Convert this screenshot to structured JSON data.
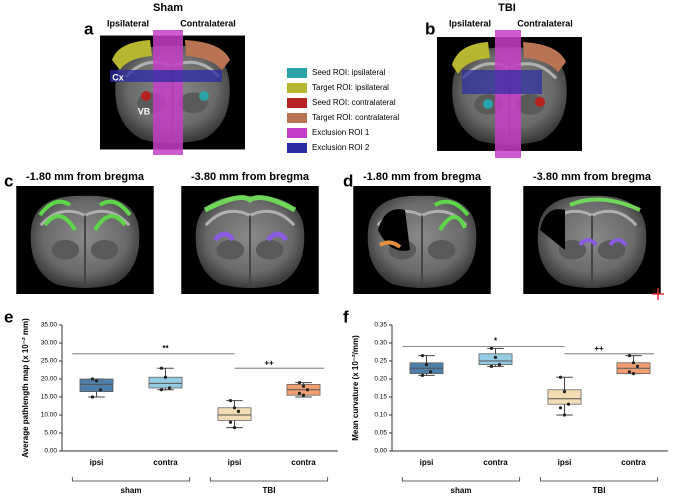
{
  "figure": {
    "panel_letters": [
      "a",
      "b",
      "c",
      "d",
      "e",
      "f"
    ],
    "panel_a": {
      "title": "Sham",
      "left": "Ipsilateral",
      "right": "Contralateral",
      "cx": "Cx",
      "vb": "VB"
    },
    "panel_b": {
      "title": "TBI",
      "left": "Ipsilateral",
      "right": "Contralateral"
    },
    "legend": [
      {
        "label": "Seed ROI: ipsilateral",
        "color": "#2aa3a8"
      },
      {
        "label": "Target ROI: ipsilateral",
        "color": "#b8b530"
      },
      {
        "label": "Seed ROI: contralateral",
        "color": "#b42222"
      },
      {
        "label": "Target ROI: contralateral",
        "color": "#b87452"
      },
      {
        "label": "Exclusion ROI 1",
        "color": "#c23ec6"
      },
      {
        "label": "Exclusion ROI 2",
        "color": "#2b2ba3"
      }
    ],
    "panel_c": {
      "left": "-1.80 mm from bregma",
      "right": "-3.80 mm from bregma"
    },
    "panel_d": {
      "left": "-1.80 mm from bregma",
      "right": "-3.80 mm from bregma"
    }
  },
  "chart_data": [
    {
      "type": "box",
      "y_label": "Average pathlength map (x 10⁻² mm)",
      "categories": [
        "ipsi",
        "contra",
        "ipsi",
        "contra"
      ],
      "group_labels": [
        "sham",
        "TBI"
      ],
      "ylim": [
        0,
        35
      ],
      "yticks": [
        {
          "value": 0,
          "label": "0.00"
        },
        {
          "value": 5,
          "label": "5.00"
        },
        {
          "value": 10,
          "label": "10.00"
        },
        {
          "value": 15,
          "label": "15.00"
        },
        {
          "value": 20,
          "label": "20.00"
        },
        {
          "value": 25,
          "label": "25.00"
        },
        {
          "value": 30,
          "label": "30.00"
        },
        {
          "value": 35,
          "label": "35.00"
        }
      ],
      "boxes": [
        {
          "color": "#4f7fa8",
          "min": 15,
          "q1": 16.5,
          "median": 18.5,
          "q3": 20,
          "max": 20,
          "points": [
            20,
            19.5,
            17,
            15
          ]
        },
        {
          "color": "#95cbe3",
          "min": 17,
          "q1": 17.5,
          "median": 18.8,
          "q3": 20.5,
          "max": 23,
          "points": [
            23,
            20.5,
            17.5,
            17
          ]
        },
        {
          "color": "#f3dcb4",
          "min": 6.5,
          "q1": 8.5,
          "median": 10,
          "q3": 12,
          "max": 14,
          "points": [
            14,
            12,
            11,
            8,
            6.5
          ]
        },
        {
          "color": "#ef9f72",
          "min": 15,
          "q1": 15.5,
          "median": 17,
          "q3": 18.5,
          "max": 19,
          "points": [
            19,
            18,
            17,
            16,
            15.5
          ]
        }
      ],
      "annotations": [
        {
          "label": "**",
          "value": 27,
          "from": 0,
          "to": 2
        },
        {
          "label": "++",
          "value": 23,
          "from": 2,
          "to": 3
        }
      ]
    },
    {
      "type": "box",
      "y_label": "Mean curvature (x 10⁻²/mm)",
      "categories": [
        "ipsi",
        "contra",
        "ipsi",
        "contra"
      ],
      "group_labels": [
        "sham",
        "TBI"
      ],
      "ylim": [
        0,
        0.35
      ],
      "yticks": [
        {
          "value": 0,
          "label": "0.00"
        },
        {
          "value": 0.05,
          "label": "0.05"
        },
        {
          "value": 0.1,
          "label": "0.10"
        },
        {
          "value": 0.15,
          "label": "0.15"
        },
        {
          "value": 0.2,
          "label": "0.20"
        },
        {
          "value": 0.25,
          "label": "0.25"
        },
        {
          "value": 0.3,
          "label": "0.30"
        },
        {
          "value": 0.35,
          "label": "0.35"
        }
      ],
      "boxes": [
        {
          "color": "#4f7fa8",
          "min": 0.21,
          "q1": 0.215,
          "median": 0.23,
          "q3": 0.245,
          "max": 0.265,
          "points": [
            0.265,
            0.24,
            0.22,
            0.21
          ]
        },
        {
          "color": "#95cbe3",
          "min": 0.235,
          "q1": 0.24,
          "median": 0.25,
          "q3": 0.27,
          "max": 0.285,
          "points": [
            0.285,
            0.26,
            0.24,
            0.235
          ]
        },
        {
          "color": "#f3dcb4",
          "min": 0.1,
          "q1": 0.13,
          "median": 0.145,
          "q3": 0.17,
          "max": 0.205,
          "points": [
            0.205,
            0.165,
            0.13,
            0.12,
            0.1
          ]
        },
        {
          "color": "#ef9f72",
          "min": 0.215,
          "q1": 0.215,
          "median": 0.23,
          "q3": 0.245,
          "max": 0.265,
          "points": [
            0.265,
            0.245,
            0.235,
            0.22,
            0.215
          ]
        }
      ],
      "annotations": [
        {
          "label": "*",
          "value": 0.29,
          "from": 0,
          "to": 2
        },
        {
          "label": "++",
          "value": 0.27,
          "from": 2,
          "to": 3
        }
      ]
    }
  ]
}
